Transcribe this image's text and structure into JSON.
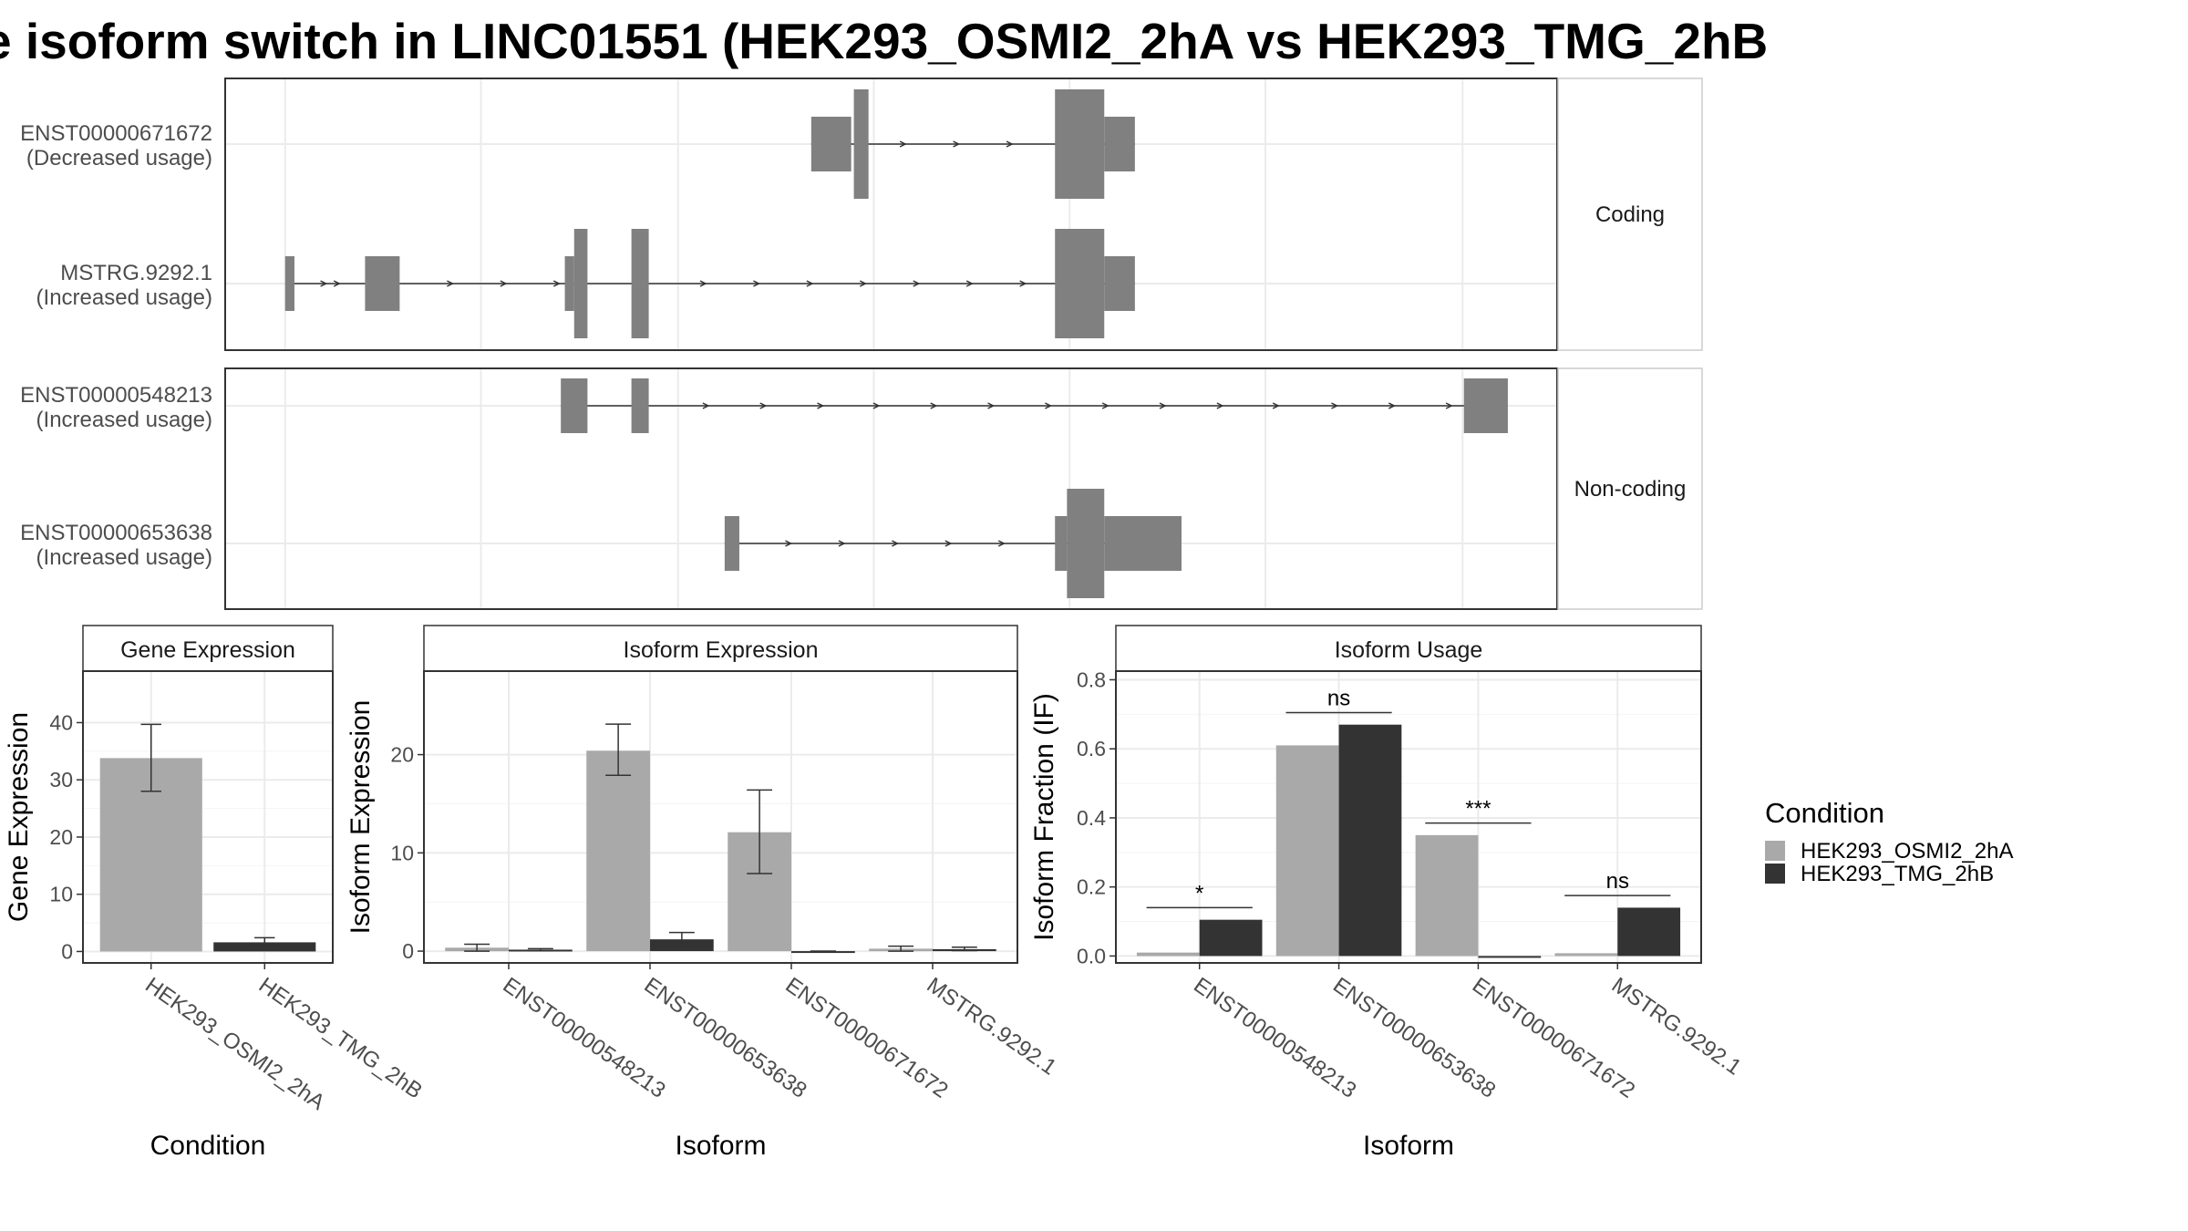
{
  "title": "e isoform switch in LINC01551 (HEK293_OSMI2_2hA vs HEK293_TMG_2hB",
  "colors": {
    "cond1": "#a9a9a9",
    "cond2": "#333333",
    "exon": "#808080"
  },
  "legend": {
    "title": "Condition",
    "items": [
      "HEK293_OSMI2_2hA",
      "HEK293_TMG_2hB"
    ]
  },
  "structure": {
    "groups": [
      {
        "label": "Coding",
        "isoforms": [
          {
            "id": "ENST00000671672",
            "note": "(Decreased usage)",
            "exons": [
              [
                0.44,
                0.47,
                "s"
              ],
              [
                0.472,
                0.483,
                "l"
              ],
              [
                0.623,
                0.66,
                "l"
              ],
              [
                0.66,
                0.683,
                "s"
              ]
            ],
            "arrows": [
              0.51,
              0.55,
              0.59,
              0.628
            ]
          },
          {
            "id": "MSTRG.9292.1",
            "note": "(Increased usage)",
            "exons": [
              [
                0.045,
                0.052,
                "s"
              ],
              [
                0.105,
                0.131,
                "s"
              ],
              [
                0.255,
                0.262,
                "s"
              ],
              [
                0.262,
                0.272,
                "l"
              ],
              [
                0.305,
                0.318,
                "l"
              ],
              [
                0.623,
                0.66,
                "l"
              ],
              [
                0.66,
                0.683,
                "s"
              ]
            ],
            "arrows": [
              0.075,
              0.085,
              0.17,
              0.21,
              0.25,
              0.36,
              0.4,
              0.44,
              0.48,
              0.52,
              0.56,
              0.6
            ]
          }
        ]
      },
      {
        "label": "Non-coding",
        "isoforms": [
          {
            "id": "ENST00000548213",
            "note": "(Increased usage)",
            "exons": [
              [
                0.252,
                0.272,
                "s"
              ],
              [
                0.305,
                0.318,
                "s"
              ],
              [
                0.93,
                0.963,
                "s"
              ]
            ],
            "arrows": [
              0.362,
              0.405,
              0.448,
              0.49,
              0.533,
              0.576,
              0.619,
              0.662,
              0.705,
              0.748,
              0.79,
              0.834,
              0.877,
              0.92
            ]
          },
          {
            "id": "ENST00000653638",
            "note": "(Increased usage)",
            "exons": [
              [
                0.375,
                0.386,
                "s"
              ],
              [
                0.623,
                0.632,
                "s"
              ],
              [
                0.632,
                0.66,
                "l"
              ],
              [
                0.66,
                0.718,
                "s"
              ]
            ],
            "arrows": [
              0.424,
              0.464,
              0.504,
              0.544,
              0.584
            ]
          }
        ]
      }
    ]
  },
  "chart_data": [
    {
      "type": "bar",
      "title": "Gene Expression",
      "xlabel": "Condition",
      "ylabel": "Gene Expression",
      "categories": [
        "HEK293_OSMI2_2hA",
        "HEK293_TMG_2hB"
      ],
      "values": [
        33.8,
        1.6
      ],
      "errors": [
        [
          28,
          39.7
        ],
        [
          1.1,
          2.4
        ]
      ],
      "ylim": [
        -2,
        49
      ],
      "yticks": [
        0,
        10,
        20,
        30,
        40
      ],
      "ytick_labels": [
        "0",
        "10",
        "20",
        "30",
        "40"
      ],
      "grid": true
    },
    {
      "type": "bar",
      "title": "Isoform Expression",
      "xlabel": "Isoform",
      "ylabel": "Isoform Expression",
      "categories": [
        "ENST00000548213",
        "ENST00000653638",
        "ENST00000671672",
        "MSTRG.9292.1"
      ],
      "series": [
        {
          "name": "HEK293_OSMI2_2hA",
          "values": [
            0.35,
            20.4,
            12.1,
            0.25
          ],
          "errors": [
            [
              0.0,
              0.7
            ],
            [
              17.9,
              23.1
            ],
            [
              7.9,
              16.4
            ],
            [
              0.0,
              0.5
            ]
          ]
        },
        {
          "name": "HEK293_TMG_2hB",
          "values": [
            0.15,
            1.2,
            0.0,
            0.2
          ],
          "errors": [
            [
              0.05,
              0.25
            ],
            [
              0.6,
              1.9
            ],
            [
              0.0,
              0.0
            ],
            [
              0.05,
              0.4
            ]
          ]
        }
      ],
      "ylim": [
        -1.2,
        28.5
      ],
      "yticks": [
        0,
        10,
        20
      ],
      "ytick_labels": [
        "0",
        "10",
        "20"
      ],
      "grid": true
    },
    {
      "type": "bar",
      "title": "Isoform Usage",
      "xlabel": "Isoform",
      "ylabel": "Isoform Fraction (IF)",
      "categories": [
        "ENST00000548213",
        "ENST00000653638",
        "ENST00000671672",
        "MSTRG.9292.1"
      ],
      "series": [
        {
          "name": "HEK293_OSMI2_2hA",
          "values": [
            0.01,
            0.61,
            0.35,
            0.008
          ]
        },
        {
          "name": "HEK293_TMG_2hB",
          "values": [
            0.105,
            0.67,
            0.0,
            0.14
          ]
        }
      ],
      "significance": [
        "*",
        "ns",
        "***",
        "ns"
      ],
      "sig_levels": [
        0.14,
        0.705,
        0.385,
        0.175
      ],
      "ylim": [
        -0.02,
        0.825
      ],
      "yticks": [
        0.0,
        0.2,
        0.4,
        0.6,
        0.8
      ],
      "ytick_labels": [
        "0.0",
        "0.2",
        "0.4",
        "0.6",
        "0.8"
      ],
      "grid": true
    }
  ]
}
